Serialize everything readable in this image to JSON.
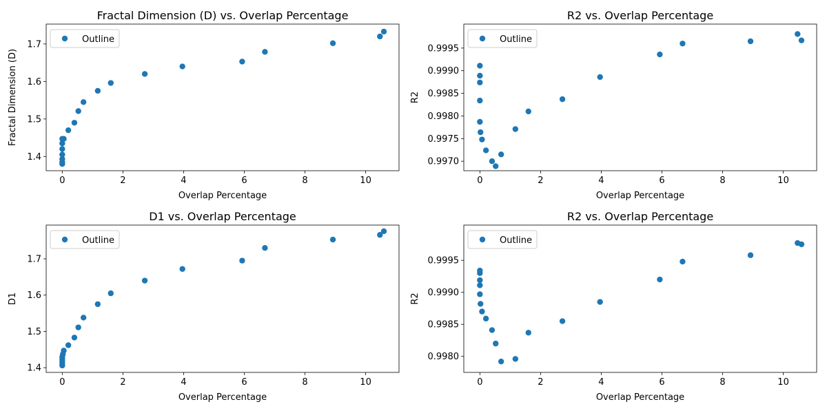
{
  "chart_data": [
    {
      "type": "scatter",
      "title": "Fractal Dimension (D) vs. Overlap Percentage",
      "xlabel": "Overlap Percentage",
      "ylabel": "Fractal Dimension (D)",
      "xlim": [
        -0.53,
        11.1
      ],
      "ylim": [
        1.362,
        1.753
      ],
      "xticks": [
        0,
        2,
        4,
        6,
        8,
        10
      ],
      "yticks": [
        1.4,
        1.5,
        1.6,
        1.7
      ],
      "ytick_labels": [
        "1.4",
        "1.5",
        "1.6",
        "1.7"
      ],
      "legend": "upper left",
      "series": [
        {
          "name": "Outline",
          "color": "#1f77b4",
          "x": [
            0,
            0,
            0,
            0,
            0,
            0,
            0,
            0.05,
            0.2,
            0.4,
            0.53,
            0.7,
            1.17,
            1.6,
            2.72,
            3.96,
            5.93,
            6.68,
            8.92,
            10.47,
            10.6
          ],
          "y": [
            1.38,
            1.385,
            1.393,
            1.405,
            1.42,
            1.435,
            1.447,
            1.447,
            1.47,
            1.49,
            1.521,
            1.545,
            1.575,
            1.596,
            1.62,
            1.64,
            1.653,
            1.679,
            1.702,
            1.72,
            1.733
          ]
        }
      ]
    },
    {
      "type": "scatter",
      "title": "R2 vs. Overlap Percentage",
      "xlabel": "Overlap Percentage",
      "ylabel": "R2",
      "xlim": [
        -0.53,
        11.1
      ],
      "ylim": [
        0.99679,
        1.00003
      ],
      "xticks": [
        0,
        2,
        4,
        6,
        8,
        10
      ],
      "yticks": [
        0.997,
        0.9975,
        0.998,
        0.9985,
        0.999,
        0.9995
      ],
      "ytick_labels": [
        "0.9970",
        "0.9975",
        "0.9980",
        "0.9985",
        "0.9990",
        "0.9995"
      ],
      "legend": "upper left",
      "series": [
        {
          "name": "Outline",
          "color": "#1f77b4",
          "x": [
            0,
            0,
            0,
            0,
            0,
            0.02,
            0.07,
            0.2,
            0.4,
            0.52,
            0.7,
            1.17,
            1.6,
            2.72,
            3.96,
            5.93,
            6.68,
            8.92,
            10.47,
            10.6
          ],
          "y": [
            0.99911,
            0.99889,
            0.99874,
            0.99834,
            0.99787,
            0.99764,
            0.99748,
            0.99724,
            0.997,
            0.99689,
            0.99715,
            0.99771,
            0.9981,
            0.99837,
            0.99886,
            0.99936,
            0.9996,
            0.99965,
            0.99981,
            0.99967
          ]
        }
      ]
    },
    {
      "type": "scatter",
      "title": "D1 vs. Overlap Percentage",
      "xlabel": "Overlap Percentage",
      "ylabel": "D1",
      "xlim": [
        -0.53,
        11.1
      ],
      "ylim": [
        1.387,
        1.793
      ],
      "xticks": [
        0,
        2,
        4,
        6,
        8,
        10
      ],
      "yticks": [
        1.4,
        1.5,
        1.6,
        1.7
      ],
      "ytick_labels": [
        "1.4",
        "1.5",
        "1.6",
        "1.7"
      ],
      "legend": "upper left",
      "series": [
        {
          "name": "Outline",
          "color": "#1f77b4",
          "x": [
            0,
            0,
            0,
            0,
            0,
            0.02,
            0.05,
            0.2,
            0.4,
            0.53,
            0.7,
            1.17,
            1.6,
            2.72,
            3.96,
            5.93,
            6.68,
            8.92,
            10.47,
            10.6
          ],
          "y": [
            1.406,
            1.412,
            1.418,
            1.424,
            1.43,
            1.437,
            1.447,
            1.462,
            1.483,
            1.511,
            1.538,
            1.575,
            1.605,
            1.64,
            1.672,
            1.695,
            1.73,
            1.753,
            1.766,
            1.776
          ]
        }
      ]
    },
    {
      "type": "scatter",
      "title": "R2 vs. Overlap Percentage",
      "xlabel": "Overlap Percentage",
      "ylabel": "R2",
      "xlim": [
        -0.53,
        11.1
      ],
      "ylim": [
        0.99775,
        1.00005
      ],
      "xticks": [
        0,
        2,
        4,
        6,
        8,
        10
      ],
      "yticks": [
        0.998,
        0.9985,
        0.999,
        0.9995
      ],
      "ytick_labels": [
        "0.9980",
        "0.9985",
        "0.9990",
        "0.9995"
      ],
      "legend": "upper left",
      "series": [
        {
          "name": "Outline",
          "color": "#1f77b4",
          "x": [
            0,
            0,
            0,
            0,
            0,
            0.02,
            0.07,
            0.2,
            0.4,
            0.52,
            0.7,
            1.17,
            1.6,
            2.72,
            3.96,
            5.93,
            6.68,
            8.92,
            10.47,
            10.6
          ],
          "y": [
            0.99934,
            0.9993,
            0.99919,
            0.99911,
            0.99897,
            0.99882,
            0.9987,
            0.99859,
            0.99841,
            0.9982,
            0.99792,
            0.99796,
            0.99837,
            0.99855,
            0.99885,
            0.9992,
            0.99948,
            0.99958,
            0.99977,
            0.99975
          ]
        }
      ]
    }
  ]
}
